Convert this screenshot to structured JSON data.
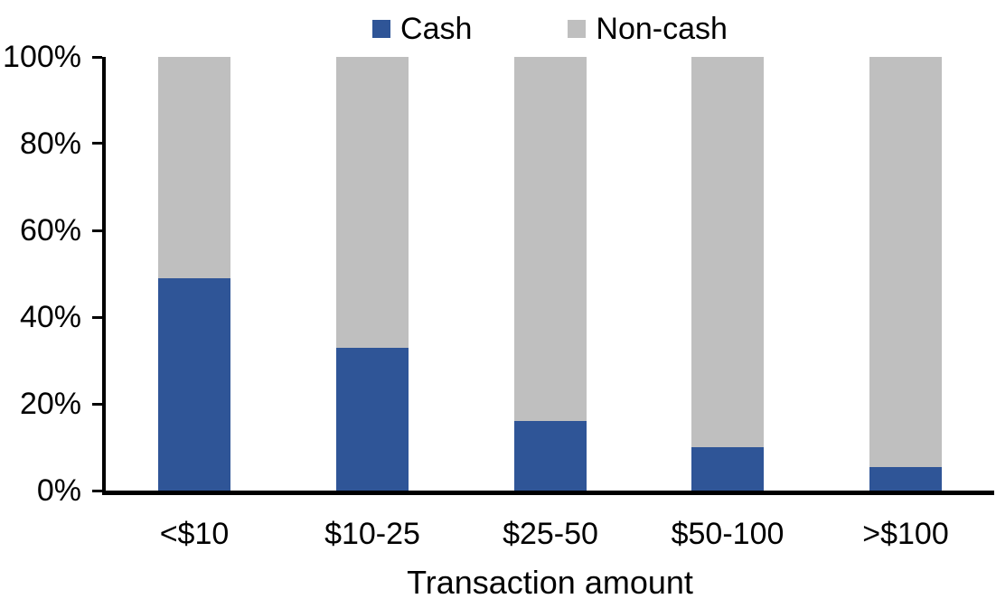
{
  "chart_data": {
    "type": "bar",
    "subtype": "stacked-100-percent",
    "title": "",
    "xlabel": "Transaction amount",
    "ylabel": "",
    "categories": [
      "<$10",
      "$10-25",
      "$25-50",
      "$50-100",
      ">$100"
    ],
    "series": [
      {
        "name": "Cash",
        "color": "#2F5597",
        "values": [
          49,
          33,
          16,
          10,
          5.5
        ]
      },
      {
        "name": "Non-cash",
        "color": "#BFBFBF",
        "values": [
          51,
          67,
          84,
          90,
          94.5
        ]
      }
    ],
    "ylim": [
      0,
      100
    ],
    "ytick_labels": [
      "0%",
      "20%",
      "40%",
      "60%",
      "80%",
      "100%"
    ],
    "grid": false,
    "legend_position": "top-center"
  },
  "colors": {
    "cash": "#2F5597",
    "noncash": "#BFBFBF",
    "axis": "#000000",
    "text": "#000000",
    "background": "#FFFFFF"
  }
}
